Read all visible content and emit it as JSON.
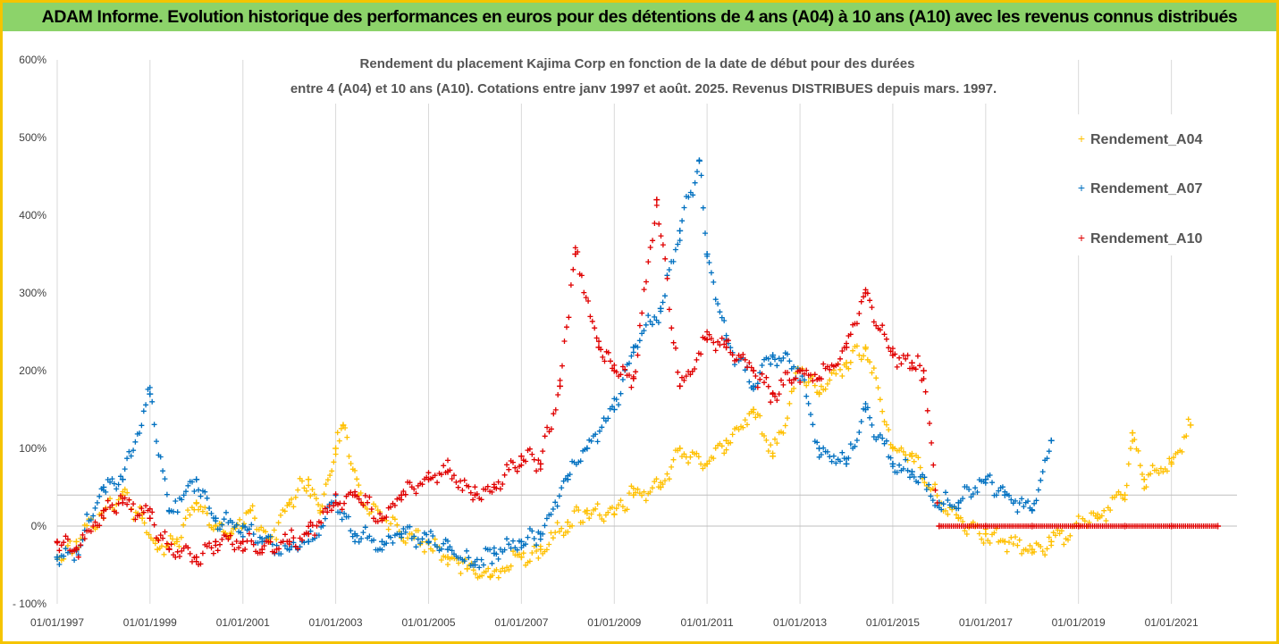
{
  "header": {
    "title": "ADAM Informe. Evolution historique des performances en euros pour des détentions de 4 ans (A04) à 10 ans (A10) avec les revenus connus distribués"
  },
  "colors": {
    "header_bg": "#8cd36a",
    "frame": "#f5c400",
    "A04": "#ffc000",
    "A07": "#0070c0",
    "A10": "#e00000"
  },
  "chart_data": {
    "type": "scatter",
    "title_lines": [
      "Rendement du placement Kajima Corp en fonction de la date de début pour des durées",
      "entre 4 (A04) et 10 ans (A10). Cotations entre janv 1997 et août. 2025. Revenus DISTRIBUES depuis mars. 1997."
    ],
    "xlabel": "",
    "ylabel": "",
    "ylim": [
      -100,
      600
    ],
    "xlim": [
      "1997-01-01",
      "2022-06-01"
    ],
    "y_ticks": [
      "600%",
      "500%",
      "400%",
      "300%",
      "200%",
      "100%",
      "0%",
      "- 100%"
    ],
    "y_tick_values": [
      600,
      500,
      400,
      300,
      200,
      100,
      0,
      -100
    ],
    "x_ticks": [
      "01/01/1997",
      "01/01/1999",
      "01/01/2001",
      "01/01/2003",
      "01/01/2005",
      "01/01/2007",
      "01/01/2009",
      "01/01/2011",
      "01/01/2013",
      "01/01/2015",
      "01/01/2017",
      "01/01/2019",
      "01/01/2021"
    ],
    "x_tick_dates": [
      "1997-01-01",
      "1999-01-01",
      "2001-01-01",
      "2003-01-01",
      "2005-01-01",
      "2007-01-01",
      "2009-01-01",
      "2011-01-01",
      "2013-01-01",
      "2015-01-01",
      "2017-01-01",
      "2019-01-01",
      "2021-01-01"
    ],
    "reference_line": 40,
    "grid": "vertical",
    "legend_position": "right",
    "marker": "+",
    "series": [
      {
        "name": "Rendement_A04",
        "x": [
          "1997-01-01",
          "1997-06-01",
          "1998-01-01",
          "1998-06-01",
          "1998-11-01",
          "1999-03-01",
          "1999-08-01",
          "2000-01-01",
          "2000-06-01",
          "2000-10-01",
          "2001-03-01",
          "2001-08-01",
          "2002-01-01",
          "2002-06-01",
          "2002-09-01",
          "2003-01-01",
          "2003-03-01",
          "2003-07-01",
          "2004-01-01",
          "2004-06-01",
          "2005-01-01",
          "2005-06-01",
          "2005-11-01",
          "2006-05-01",
          "2007-01-01",
          "2007-06-01",
          "2008-01-01",
          "2008-06-01",
          "2009-01-01",
          "2009-06-01",
          "2010-01-01",
          "2010-06-01",
          "2011-01-01",
          "2011-06-01",
          "2012-01-01",
          "2012-06-01",
          "2013-01-01",
          "2013-06-01",
          "2014-01-01",
          "2014-06-01",
          "2015-01-01",
          "2015-06-01",
          "2016-01-01",
          "2016-06-01",
          "2017-01-01",
          "2017-06-01",
          "2018-01-01",
          "2018-06-01",
          "2019-01-01",
          "2019-06-01",
          "2020-01-01",
          "2020-03-01",
          "2020-06-01",
          "2021-01-01",
          "2021-06-01"
        ],
        "values": [
          -40,
          -20,
          20,
          40,
          10,
          -30,
          -20,
          30,
          0,
          -10,
          20,
          -20,
          30,
          60,
          20,
          100,
          130,
          40,
          10,
          -10,
          -20,
          -40,
          -55,
          -65,
          -40,
          -30,
          5,
          20,
          15,
          40,
          50,
          100,
          80,
          110,
          150,
          90,
          200,
          170,
          210,
          230,
          100,
          90,
          30,
          10,
          -10,
          -20,
          -30,
          -20,
          0,
          10,
          40,
          120,
          60,
          80,
          130
        ]
      },
      {
        "name": "Rendement_A07",
        "x": [
          "1997-01-01",
          "1997-06-01",
          "1998-01-01",
          "1998-06-01",
          "1999-01-01",
          "1999-06-01",
          "2000-01-01",
          "2000-06-01",
          "2001-01-01",
          "2001-06-01",
          "2002-01-01",
          "2002-06-01",
          "2003-01-01",
          "2003-06-01",
          "2004-01-01",
          "2004-06-01",
          "2005-01-01",
          "2005-06-01",
          "2006-01-01",
          "2006-06-01",
          "2007-01-01",
          "2007-06-01",
          "2008-01-01",
          "2008-06-01",
          "2009-01-01",
          "2009-06-01",
          "2010-01-01",
          "2010-06-01",
          "2010-11-01",
          "2011-01-01",
          "2011-06-01",
          "2012-01-01",
          "2012-06-01",
          "2013-01-01",
          "2013-06-01",
          "2014-01-01",
          "2014-06-01",
          "2015-01-01",
          "2015-06-01",
          "2016-01-01",
          "2016-06-01",
          "2017-01-01",
          "2017-06-01",
          "2018-01-01",
          "2018-06-01"
        ],
        "values": [
          -40,
          -30,
          50,
          60,
          170,
          20,
          60,
          10,
          0,
          -20,
          -30,
          -20,
          30,
          -10,
          -20,
          -10,
          -20,
          -30,
          -50,
          -35,
          -20,
          -10,
          60,
          100,
          150,
          230,
          280,
          380,
          470,
          350,
          240,
          180,
          220,
          200,
          100,
          80,
          150,
          80,
          70,
          30,
          30,
          60,
          40,
          20,
          110
        ]
      },
      {
        "name": "Rendement_A10",
        "x": [
          "1997-01-01",
          "1997-06-01",
          "1998-01-01",
          "1998-06-01",
          "1999-01-01",
          "1999-06-01",
          "2000-01-01",
          "2000-06-01",
          "2001-01-01",
          "2001-06-01",
          "2002-01-01",
          "2002-06-01",
          "2003-01-01",
          "2003-06-01",
          "2004-01-01",
          "2004-06-01",
          "2005-01-01",
          "2005-06-01",
          "2006-01-01",
          "2006-06-01",
          "2007-01-01",
          "2007-06-01",
          "2007-11-01",
          "2008-03-01",
          "2008-09-01",
          "2009-01-01",
          "2009-06-01",
          "2009-12-01",
          "2010-06-01",
          "2011-01-01",
          "2011-06-01",
          "2012-01-01",
          "2012-06-01",
          "2013-01-01",
          "2013-06-01",
          "2014-01-01",
          "2014-06-01",
          "2015-01-01",
          "2015-06-01",
          "2015-09-01",
          "2016-01-01",
          "2017-01-01",
          "2018-01-01",
          "2019-01-01",
          "2020-01-01",
          "2021-01-01",
          "2022-01-01"
        ],
        "values": [
          -20,
          -30,
          20,
          30,
          10,
          -30,
          -40,
          -20,
          -20,
          -30,
          -20,
          -10,
          30,
          40,
          10,
          40,
          60,
          70,
          40,
          50,
          90,
          80,
          180,
          350,
          230,
          200,
          190,
          420,
          180,
          240,
          230,
          200,
          170,
          200,
          190,
          230,
          300,
          220,
          210,
          200,
          0,
          0,
          0,
          0,
          0,
          0,
          0
        ]
      }
    ]
  }
}
